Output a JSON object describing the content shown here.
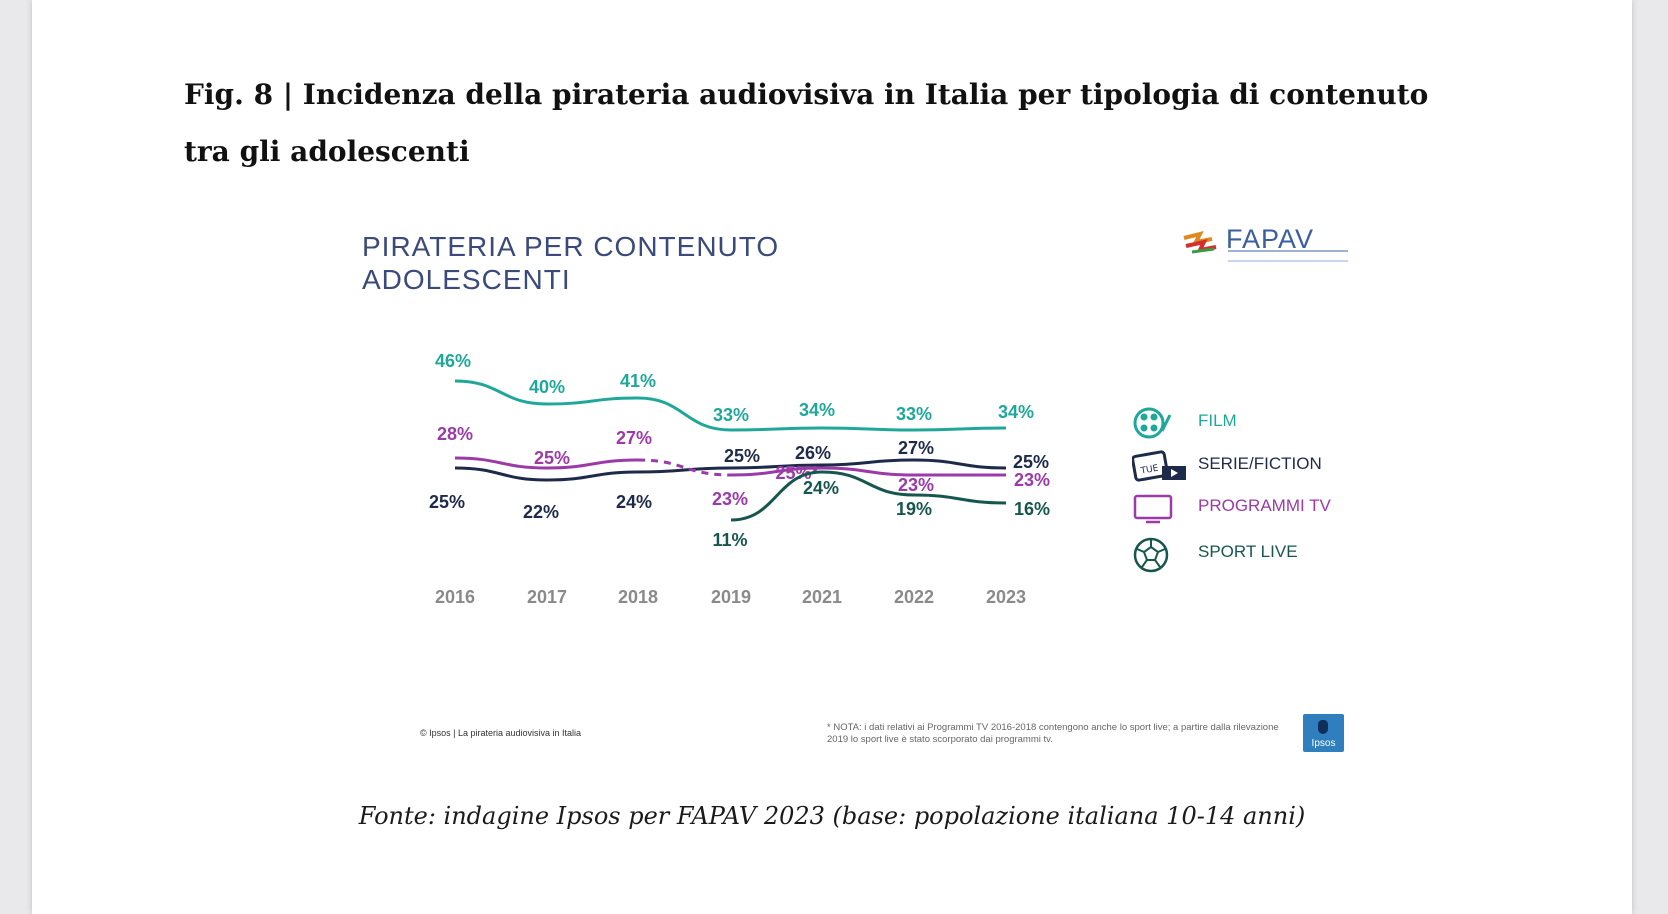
{
  "figure_title": "Fig. 8 | Incidenza della pirateria audiovisiva in Italia per tipologia di contenuto tra gli adolescenti",
  "slide": {
    "title_line1": "PIRATERIA PER CONTENUTO",
    "title_line2": "ADOLESCENTI",
    "logo_text": "FAPAV",
    "footer_left": "© Ipsos | La pirateria audiovisiva in Italia",
    "footer_note": "* NOTA: i dati relativi ai Programmi TV 2016-2018 contengono anche lo sport live; a partire dalla rilevazione 2019 lo sport live è stato scorporato dai programmi tv.",
    "ipsos_label": "Ipsos"
  },
  "source": "Fonte: indagine Ipsos per FAPAV 2023 (base: popolazione italiana 10-14 anni)",
  "legend": [
    {
      "label": "FILM",
      "icon": "film-reel-icon",
      "color": "#1fa89a"
    },
    {
      "label": "SERIE/FICTION",
      "icon": "calendar-video-icon",
      "color": "#1e2a4a"
    },
    {
      "label": "PROGRAMMI TV",
      "icon": "tv-icon",
      "color": "#9b3aa8"
    },
    {
      "label": "SPORT LIVE",
      "icon": "soccer-ball-icon",
      "color": "#17564f"
    }
  ],
  "chart_data": {
    "type": "line",
    "title": "PIRATERIA PER CONTENUTO ADOLESCENTI",
    "x": [
      "2016",
      "2017",
      "2018",
      "2019",
      "2021",
      "2022",
      "2023"
    ],
    "ylim": [
      0,
      50
    ],
    "grid": false,
    "legend_position": "right",
    "series": [
      {
        "name": "FILM",
        "color": "#1fa89a",
        "values": [
          46,
          40,
          41,
          33,
          34,
          33,
          34
        ],
        "labels": [
          "46%",
          "40%",
          "41%",
          "33%",
          "34%",
          "33%",
          "34%"
        ]
      },
      {
        "name": "SERIE/FICTION",
        "color": "#1e2a4a",
        "values": [
          25,
          22,
          24,
          25,
          26,
          27,
          25
        ],
        "labels": [
          "25%",
          "22%",
          "24%",
          "25%",
          "26%",
          "27%",
          "25%"
        ]
      },
      {
        "name": "PROGRAMMI TV",
        "color": "#9b3aa8",
        "values": [
          28,
          25,
          27,
          23,
          25,
          23,
          23
        ],
        "labels": [
          "28%",
          "25%",
          "27%",
          "23%",
          "25%*",
          "23%",
          "23%"
        ],
        "dashed_segment": [
          2,
          3
        ]
      },
      {
        "name": "SPORT LIVE",
        "color": "#17564f",
        "values": [
          null,
          null,
          null,
          11,
          24,
          19,
          16
        ],
        "labels": [
          "",
          "",
          "",
          "11%",
          "24%",
          "19%",
          "16%"
        ]
      }
    ]
  }
}
